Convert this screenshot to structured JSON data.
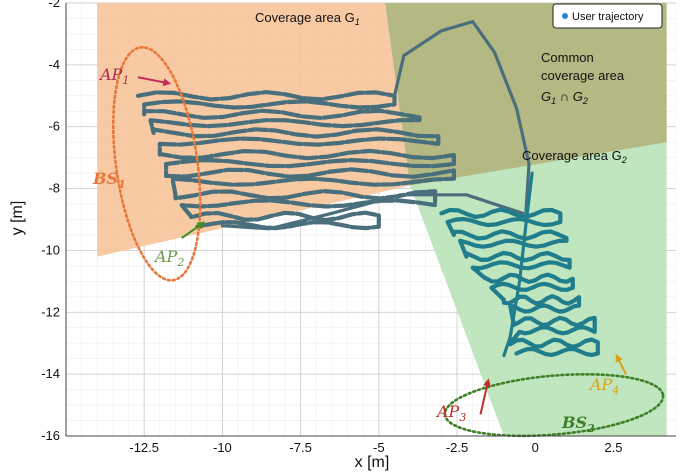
{
  "chart_data": {
    "type": "line",
    "xlabel": "x [m]",
    "ylabel": "y [m]",
    "xlim": [
      -15,
      4.5
    ],
    "ylim": [
      -16,
      -2
    ],
    "x_ticks": [
      -12.5,
      -10,
      -7.5,
      -5,
      -2.5,
      0,
      2.5
    ],
    "y_ticks": [
      -2,
      -4,
      -6,
      -8,
      -10,
      -12,
      -14,
      -16
    ],
    "grid": true,
    "legend": {
      "placement": "top-right",
      "entries": [
        "User trajectory"
      ]
    },
    "colors": {
      "trajectory_g1": "#4a6f7c",
      "trajectory_g2": "#1f7d8c",
      "coverage_g1": "#f6c49a",
      "coverage_g2": "#b9e3b9",
      "overlap": "#b3b680",
      "bs1_ellipse": "#e8773a",
      "bs2_ellipse": "#3f7f27",
      "ap1_arrow": "#c0305a",
      "ap2_arrow": "#3f8f22",
      "ap3_arrow": "#c0302a",
      "ap4_arrow": "#d9a414",
      "legend_dot": "#2f7fd0"
    },
    "regions": [
      {
        "label": "Coverage area G1",
        "polygon": [
          [
            -14,
            -2
          ],
          [
            -4.8,
            -2
          ],
          [
            -4.0,
            -7.9
          ],
          [
            -14,
            -10.2
          ]
        ]
      },
      {
        "label": "Coverage area G2",
        "polygon": [
          [
            -4.8,
            -2
          ],
          [
            4.2,
            -2
          ],
          [
            4.2,
            -16
          ],
          [
            -1.0,
            -16
          ],
          [
            -4.0,
            -7.9
          ]
        ]
      },
      {
        "label": "Common coverage area G1 ∩ G2",
        "polygon": [
          [
            -4.8,
            -2
          ],
          [
            4.2,
            -2
          ],
          [
            4.2,
            -6.5
          ],
          [
            -4.0,
            -7.9
          ]
        ]
      }
    ],
    "base_stations": [
      {
        "label": "BS1",
        "center": [
          -12.1,
          -7.2
        ],
        "rx": 1.3,
        "ry": 3.8,
        "angle_deg": 8
      },
      {
        "label": "BS2",
        "center": [
          0.6,
          -15.0
        ],
        "rx": 3.5,
        "ry": 0.95,
        "angle_deg": 5
      }
    ],
    "access_points": [
      {
        "label": "AP1",
        "tail": [
          -12.7,
          -4.4
        ],
        "head": [
          -11.7,
          -4.6
        ]
      },
      {
        "label": "AP2",
        "tail": [
          -11.3,
          -9.6
        ],
        "head": [
          -10.6,
          -9.1
        ]
      },
      {
        "label": "AP3",
        "tail": [
          -1.75,
          -15.3
        ],
        "head": [
          -1.5,
          -14.2
        ]
      },
      {
        "label": "AP4",
        "tail": [
          2.9,
          -14.0
        ],
        "head": [
          2.6,
          -13.4
        ]
      }
    ],
    "trajectory_g1": {
      "rows": [
        {
          "y": -5.0,
          "x_left": -12.7,
          "x_right": -4.5
        },
        {
          "y": -5.6,
          "x_left": -12.5,
          "x_right": -3.7
        },
        {
          "y": -6.2,
          "x_left": -12.2,
          "x_right": -3.1
        },
        {
          "y": -6.9,
          "x_left": -12.0,
          "x_right": -2.6
        },
        {
          "y": -7.5,
          "x_left": -11.8,
          "x_right": -2.6
        },
        {
          "y": -8.2,
          "x_left": -11.5,
          "x_right": -3.2
        },
        {
          "y": -8.9,
          "x_left": -11.0,
          "x_right": -5.0
        }
      ],
      "return_path": [
        [
          -4.5,
          -5.0
        ],
        [
          -4.2,
          -3.7
        ],
        [
          -3.0,
          -2.9
        ],
        [
          -2.0,
          -2.6
        ],
        [
          -1.3,
          -3.6
        ],
        [
          -0.6,
          -5.4
        ],
        [
          -0.2,
          -7.2
        ],
        [
          -0.3,
          -8.8
        ]
      ],
      "bottom_path": [
        [
          -10.0,
          -9.2
        ],
        [
          -8.5,
          -9.3
        ],
        [
          -6.5,
          -8.8
        ],
        [
          -4.3,
          -8.2
        ],
        [
          -2.2,
          -8.2
        ],
        [
          -0.4,
          -8.8
        ]
      ]
    },
    "trajectory_g2": {
      "rows": [
        {
          "y": -8.8,
          "x_left": -3.0,
          "x_right": 0.8
        },
        {
          "y": -9.5,
          "x_left": -2.6,
          "x_right": 1.0
        },
        {
          "y": -10.2,
          "x_left": -2.2,
          "x_right": 1.1
        },
        {
          "y": -10.9,
          "x_left": -1.6,
          "x_right": 1.2
        },
        {
          "y": -11.6,
          "x_left": -1.0,
          "x_right": 1.4
        },
        {
          "y": -12.3,
          "x_left": -0.7,
          "x_right": 1.9
        },
        {
          "y": -13.0,
          "x_left": -0.8,
          "x_right": 2.0
        }
      ],
      "spine": [
        [
          -0.1,
          -7.5
        ],
        [
          -0.3,
          -9.2
        ],
        [
          -0.5,
          -11.0
        ],
        [
          -0.8,
          -12.8
        ],
        [
          -1.0,
          -13.4
        ]
      ]
    },
    "annotations": [
      {
        "key": "g1",
        "text": "Coverage area G1",
        "at": [
          -8.2,
          -2.5
        ]
      },
      {
        "key": "common_line1",
        "text": "Common",
        "at": [
          0.8,
          -3.8
        ]
      },
      {
        "key": "common_line2",
        "text": "coverage area",
        "at": [
          0.8,
          -4.6
        ]
      },
      {
        "key": "common_line3",
        "text": "G1 ∩ G2",
        "at": [
          0.8,
          -5.4
        ]
      },
      {
        "key": "g2",
        "text": "Coverage area G2",
        "at": [
          0.2,
          -7.1
        ]
      }
    ]
  },
  "text": {
    "legend_entry": "User trajectory",
    "g1_label": "Coverage area G",
    "g1_sub": "1",
    "common_l1": "Common",
    "common_l2": "coverage area",
    "common_l3": "G",
    "common_l3_sub1": "1",
    "common_l3_cap": " ∩ G",
    "common_l3_sub2": "2",
    "g2_label": "Coverage area G",
    "g2_sub": "2",
    "ap1": "AP",
    "ap1_sub": "1",
    "ap2": "AP",
    "ap2_sub": "2",
    "ap3": "AP",
    "ap3_sub": "3",
    "ap4": "AP",
    "ap4_sub": "4",
    "bs1": "BS",
    "bs1_sub": "1",
    "bs2": "BS",
    "bs2_sub": "2"
  }
}
